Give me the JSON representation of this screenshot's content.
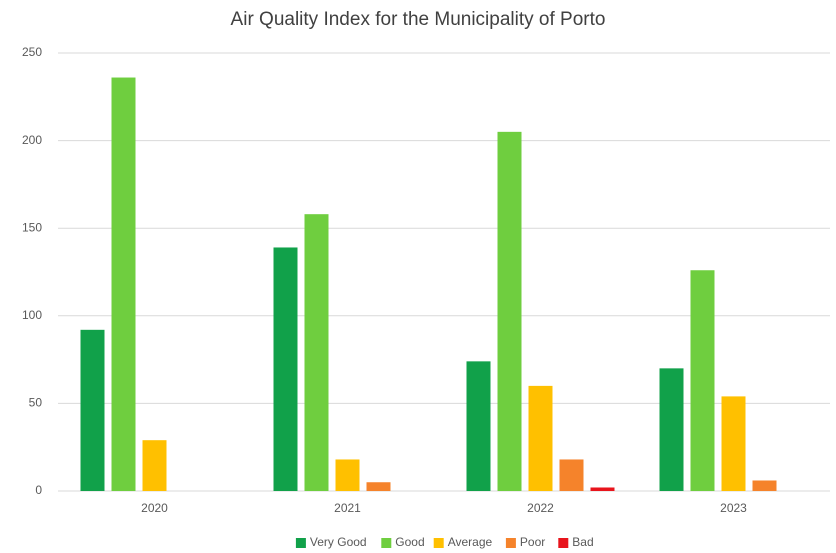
{
  "chart_data": {
    "type": "bar",
    "title": "Air Quality Index for the Municipality of Porto",
    "categories": [
      "2020",
      "2021",
      "2022",
      "2023"
    ],
    "series": [
      {
        "name": "Very Good",
        "color": "#11a14a",
        "values": [
          92,
          139,
          74,
          70
        ]
      },
      {
        "name": "Good",
        "color": "#6fce3f",
        "values": [
          236,
          158,
          205,
          126
        ]
      },
      {
        "name": "Average",
        "color": "#ffc000",
        "values": [
          29,
          18,
          60,
          54
        ]
      },
      {
        "name": "Poor",
        "color": "#f5832b",
        "values": [
          0,
          5,
          18,
          6
        ]
      },
      {
        "name": "Bad",
        "color": "#e8141c",
        "values": [
          0,
          0,
          2,
          0
        ]
      }
    ],
    "ylim": [
      0,
      250
    ],
    "yticks": [
      0,
      50,
      100,
      150,
      200,
      250
    ],
    "grid": true,
    "legend": "bottom"
  }
}
